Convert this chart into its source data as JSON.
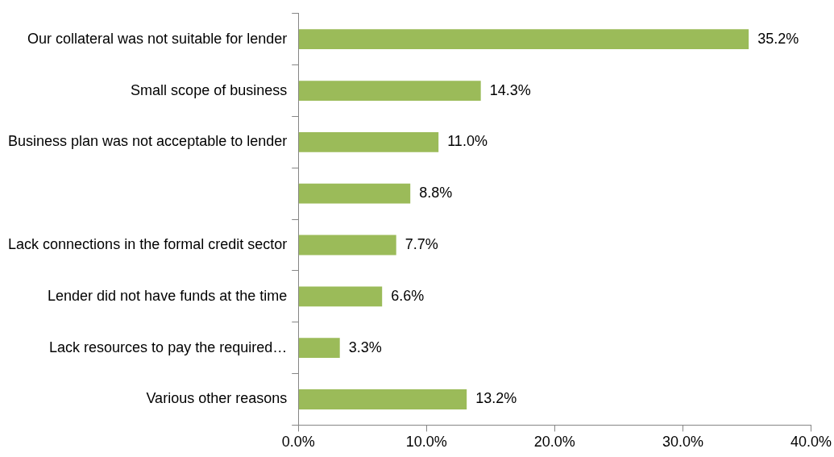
{
  "chart_data": {
    "type": "bar",
    "orientation": "horizontal",
    "categories": [
      "Our collateral was not suitable for lender",
      "Small scope of business",
      "Business plan was not acceptable to lender",
      null,
      "Lack connections in the formal credit sector",
      "Lender did not have funds at the time",
      "Lack resources to pay the required…",
      "Various other reasons"
    ],
    "values": [
      35.2,
      14.3,
      11.0,
      8.8,
      7.7,
      6.6,
      3.3,
      13.2
    ],
    "value_labels": [
      "35.2%",
      "14.3%",
      "11.0%",
      "8.8%",
      "7.7%",
      "6.6%",
      "3.3%",
      "13.2%"
    ],
    "color": "#9bbb59",
    "xlim": [
      0,
      40
    ],
    "xticks": [
      {
        "value": 0,
        "label": "0.0%"
      },
      {
        "value": 10,
        "label": "10.0%"
      },
      {
        "value": 20,
        "label": "20.0%"
      },
      {
        "value": 30,
        "label": "30.0%"
      },
      {
        "value": 40,
        "label": "40.0%"
      }
    ],
    "grid": false,
    "legend": false
  }
}
